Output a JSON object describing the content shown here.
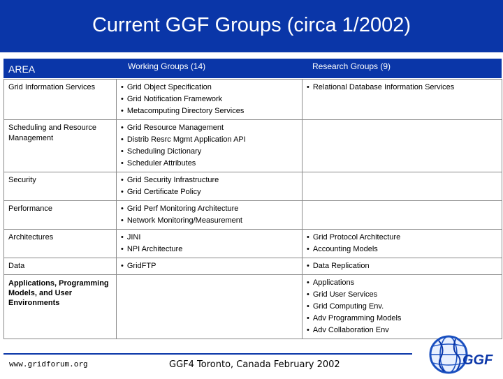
{
  "slide": {
    "title": "Current GGF Groups (circa 1/2002)"
  },
  "colors": {
    "accent": "#0a36a8",
    "border": "#8a8a8a"
  },
  "table": {
    "headers": {
      "area": "AREA",
      "working": "Working Groups (14)",
      "research": "Research Groups (9)"
    },
    "rows": [
      {
        "area": "Grid Information Services",
        "working": [
          "Grid Object Specification",
          "Grid Notification Framework",
          "Metacomputing Directory Services"
        ],
        "research": [
          "Relational Database Information Services"
        ]
      },
      {
        "area": "Scheduling and Resource Management",
        "working": [
          "Grid Resource Management",
          "Distrib Resrc Mgmt Application API",
          "Scheduling Dictionary",
          "Scheduler Attributes"
        ],
        "research": []
      },
      {
        "area": "Security",
        "working": [
          "Grid Security Infrastructure",
          "Grid Certificate Policy"
        ],
        "research": []
      },
      {
        "area": "Performance",
        "working": [
          "Grid Perf Monitoring Architecture",
          "Network Monitoring/Measurement"
        ],
        "research": []
      },
      {
        "area": "Architectures",
        "working": [
          "JINI",
          "NPI Architecture"
        ],
        "research": [
          "Grid Protocol Architecture",
          "Accounting Models"
        ]
      },
      {
        "area": "Data",
        "working": [
          "GridFTP"
        ],
        "research": [
          "Data Replication"
        ]
      },
      {
        "area": "Applications, Programming Models, and User Environments",
        "working": [],
        "research": [
          "Applications",
          "Grid User Services",
          "Grid Computing Env.",
          "Adv Programming Models",
          "Adv Collaboration Env"
        ]
      }
    ]
  },
  "footer": {
    "url": "www.gridforum.org",
    "event": "GGF4 Toronto, Canada February 2002"
  },
  "logo": {
    "icon": "globe-icon",
    "text": "GGF"
  }
}
